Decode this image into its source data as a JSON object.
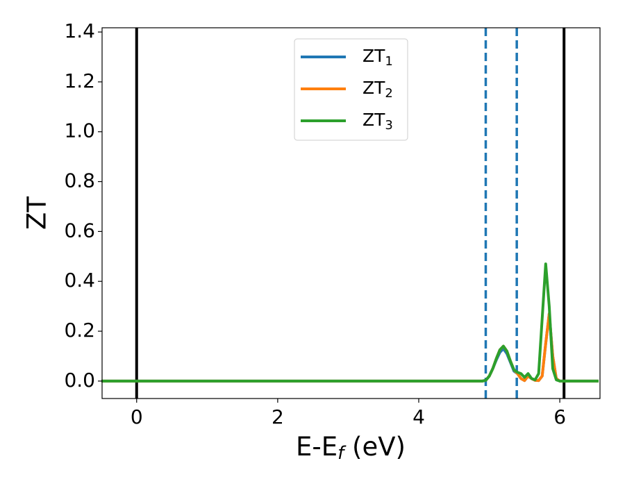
{
  "chart_data": {
    "type": "line",
    "xlabel": [
      "E-E",
      "f",
      " (eV)"
    ],
    "ylabel": "ZT",
    "x": [
      -0.5,
      4.8,
      4.85,
      4.9,
      4.95,
      5.0,
      5.05,
      5.1,
      5.15,
      5.2,
      5.25,
      5.3,
      5.35,
      5.4,
      5.45,
      5.5,
      5.55,
      5.6,
      5.65,
      5.7,
      5.75,
      5.8,
      5.85,
      5.9,
      5.95,
      6.0,
      6.05,
      6.55
    ],
    "series": [
      {
        "name": "ZT1",
        "color": "#1f77b4",
        "values": [
          0,
          0,
          0,
          0,
          0.003,
          0.02,
          0.05,
          0.085,
          0.115,
          0.13,
          0.11,
          0.075,
          0.04,
          0.03,
          0.01,
          0.002,
          0.02,
          0.01,
          0.003,
          0.002,
          0.02,
          0.15,
          0.27,
          0.1,
          0.01,
          0,
          0,
          0
        ]
      },
      {
        "name": "ZT2",
        "color": "#ff7f0e",
        "values": [
          0,
          0,
          0,
          0,
          0.003,
          0.02,
          0.05,
          0.09,
          0.125,
          0.14,
          0.12,
          0.08,
          0.045,
          0.03,
          0.01,
          0.002,
          0.02,
          0.01,
          0.003,
          0.002,
          0.02,
          0.15,
          0.27,
          0.1,
          0.01,
          0,
          0,
          0
        ]
      },
      {
        "name": "ZT3",
        "color": "#2ca02c",
        "values": [
          0,
          0,
          0,
          0,
          0.003,
          0.02,
          0.05,
          0.09,
          0.125,
          0.14,
          0.12,
          0.08,
          0.045,
          0.035,
          0.03,
          0.015,
          0.03,
          0.01,
          0.005,
          0.03,
          0.25,
          0.47,
          0.3,
          0.05,
          0.005,
          0,
          0,
          0
        ]
      }
    ],
    "vlines": [
      {
        "x": 0,
        "color": "#000000",
        "style": "solid"
      },
      {
        "x": 6.06,
        "color": "#000000",
        "style": "solid"
      },
      {
        "x": 4.95,
        "color": "#1f77b4",
        "style": "dashed"
      },
      {
        "x": 5.39,
        "color": "#1f77b4",
        "style": "dashed"
      }
    ],
    "xlim": [
      -0.49,
      6.57
    ],
    "xticks": [
      0,
      2,
      4,
      6
    ],
    "ylim": [
      -0.07,
      1.417
    ],
    "yticks": [
      {
        "value": 0,
        "label": "0.0"
      },
      {
        "value": 0.2,
        "label": "0.2"
      },
      {
        "value": 0.4,
        "label": "0.4"
      },
      {
        "value": 0.6,
        "label": "0.6"
      },
      {
        "value": 0.8,
        "label": "0.8"
      },
      {
        "value": 1.0,
        "label": "1.0"
      },
      {
        "value": 1.2,
        "label": "1.2"
      },
      {
        "value": 1.4,
        "label": "1.4"
      }
    ],
    "legend": "upper center",
    "grid": false
  }
}
